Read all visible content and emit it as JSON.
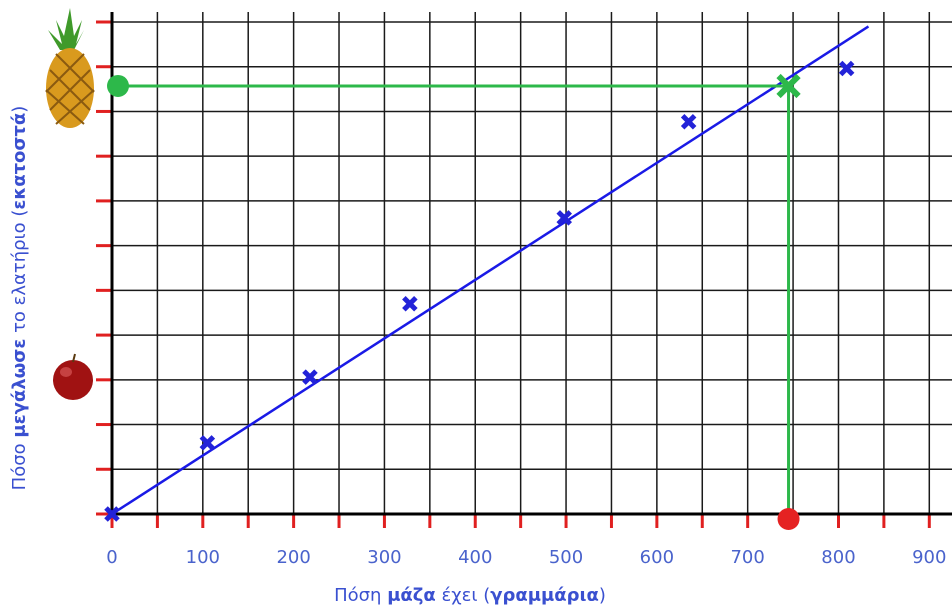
{
  "chart_data": {
    "type": "scatter",
    "x_label": [
      {
        "text": "Πόση ",
        "bold": false
      },
      {
        "text": "μάζα",
        "bold": true
      },
      {
        "text": " έχει (",
        "bold": false
      },
      {
        "text": "γραμμάρια",
        "bold": true
      },
      {
        "text": ")",
        "bold": false
      }
    ],
    "y_label": [
      {
        "text": "Πόσο ",
        "bold": false
      },
      {
        "text": "μεγάλωσε",
        "bold": true
      },
      {
        "text": " το ελατήριο (",
        "bold": false
      },
      {
        "text": "εκατοστά",
        "bold": true
      },
      {
        "text": ")",
        "bold": false
      }
    ],
    "series": [
      {
        "color": "#2323d8",
        "x": [
          0,
          105,
          218,
          328,
          498,
          635,
          809
        ],
        "values": [
          0,
          1.59,
          3.06,
          4.7,
          6.62,
          8.77,
          9.96
        ]
      }
    ],
    "fit_line": {
      "color": "#1a1ae6",
      "x": [
        0,
        833
      ],
      "y": [
        0,
        10.9
      ]
    },
    "highlight": {
      "color": "#2db84a",
      "x": 745,
      "y": 9.57,
      "x_dot_color": "#e52222"
    },
    "xlim": [
      0,
      925
    ],
    "ylim": [
      0,
      11
    ],
    "xticks": [
      0,
      100,
      200,
      300,
      400,
      500,
      600,
      700,
      800,
      900
    ],
    "x_minor_ticks": [
      50,
      150,
      250,
      350,
      450,
      550,
      650,
      750,
      850
    ],
    "yticks": [
      0,
      1,
      2,
      3,
      4,
      5,
      6,
      7,
      8,
      9,
      10,
      11
    ],
    "grid": true
  }
}
